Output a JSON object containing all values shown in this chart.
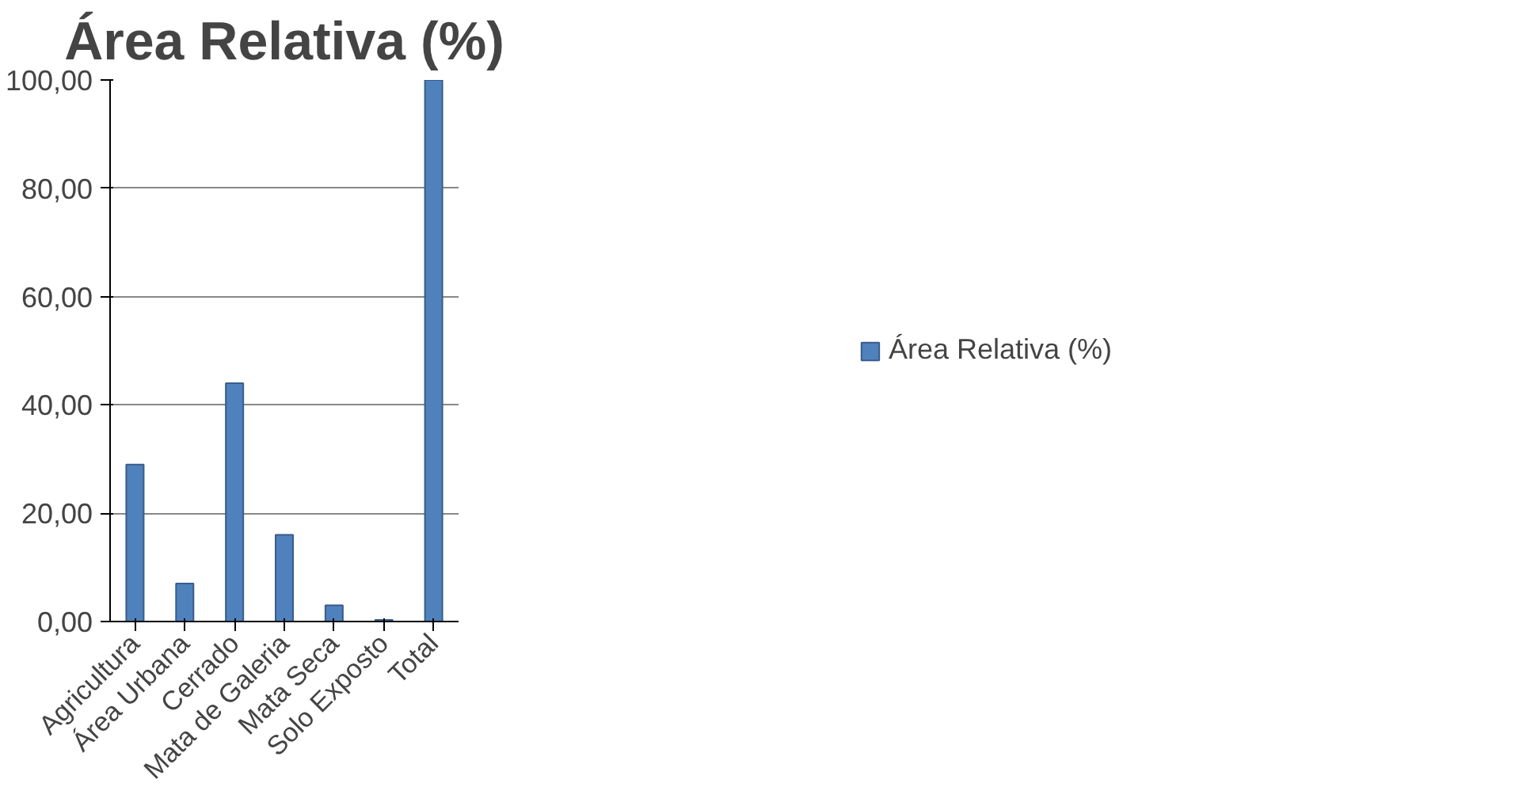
{
  "chart_data": {
    "type": "bar",
    "title": "Área Relativa (%)",
    "categories": [
      "Agricultura",
      "Área Urbana",
      "Cerrado",
      "Mata de Galeria",
      "Mata Seca",
      "Solo Exposto",
      "Total"
    ],
    "series": [
      {
        "name": "Área Relativa (%)",
        "color": "#4f81bd",
        "values": [
          29,
          7,
          44,
          16,
          3,
          0.3,
          100
        ]
      }
    ],
    "ylim": [
      0,
      100
    ],
    "yticks": [
      {
        "value": 0,
        "label": "0,00"
      },
      {
        "value": 20,
        "label": "20,00"
      },
      {
        "value": 40,
        "label": "40,00"
      },
      {
        "value": 60,
        "label": "60,00"
      },
      {
        "value": 80,
        "label": "80,00"
      },
      {
        "value": 100,
        "label": "100,00"
      }
    ],
    "grid": "y",
    "legend": "right"
  }
}
